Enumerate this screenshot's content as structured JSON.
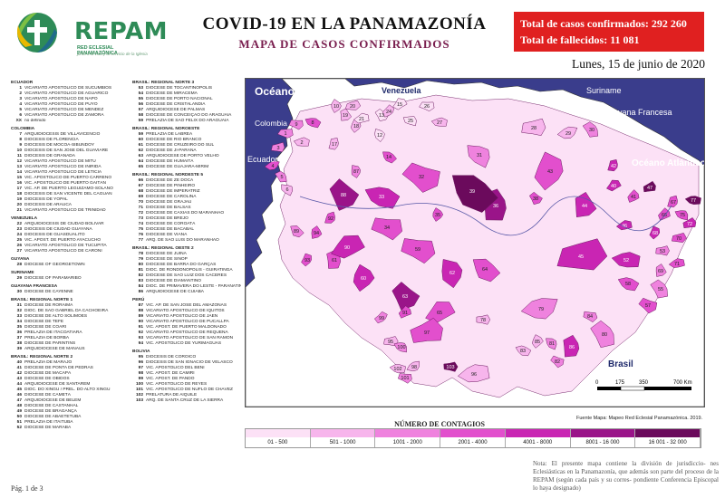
{
  "logo": {
    "name": "REPAM",
    "sub": "RED ECLESIAL PANAMAZÓNICA",
    "tagline": "junto a la vida y al servicio de la Iglesia"
  },
  "header": {
    "title": "COVID-19 EN LA PANAMAZONÍA",
    "subtitle": "MAPA DE CASOS CONFIRMADOS"
  },
  "stats": {
    "cases": "Total de casos confirmados: 292 260",
    "deaths": "Total de fallecidos: 11 081"
  },
  "date": "Lunes, 15 de junio de 2020",
  "legend_col1": [
    {
      "type": "hdr",
      "text": "ECUADOR"
    },
    {
      "n": "1",
      "t": "VICARIATO APOSTÓLICO DE SUCUMBÍOS"
    },
    {
      "n": "2",
      "t": "VICARIATO APOSTÓLICO DE AGUARICO"
    },
    {
      "n": "3",
      "t": "VICARIATO APOSTÓLICO DE NAPO"
    },
    {
      "n": "4",
      "t": "VICARIATO APOSTÓLICO DE PUYO"
    },
    {
      "n": "5",
      "t": "VICARIATO APOSTÓLICO DE MÉNDEZ"
    },
    {
      "n": "6",
      "t": "VICARIATO APOSTÓLICO DE ZAMORA"
    },
    {
      "n": "XX",
      "t": "no definido"
    },
    {
      "type": "hdr",
      "text": "COLOMBIA"
    },
    {
      "n": "7",
      "t": "ARQUIDIÓCESIS DE VILLAVICENCIO"
    },
    {
      "n": "8",
      "t": "DIÓCESIS DE FLORENCIA"
    },
    {
      "n": "9",
      "t": "DIÓCESIS DE MOCOA-SIBUNDOY"
    },
    {
      "n": "10",
      "t": "DIÓCESIS DE SAN JOSÉ DEL GUAVIARE"
    },
    {
      "n": "11",
      "t": "DIÓCESIS DE GRANADA"
    },
    {
      "n": "12",
      "t": "VICARIATO APOSTÓLICO DE MITÚ"
    },
    {
      "n": "13",
      "t": "VICARIATO APOSTÓLICO DE INÍRIDA"
    },
    {
      "n": "14",
      "t": "VICARIATO APOSTÓLICO DE LETICIA"
    },
    {
      "n": "15",
      "t": "VIC. APOSTÓLICO DE PUERTO CARREÑO"
    },
    {
      "n": "16",
      "t": "VIC. APOSTÓLICO DE PUERTO GAITÁN"
    },
    {
      "n": "17",
      "t": "VIC. AP. DE PUERTO LEGUÍZAMO-SOLANO"
    },
    {
      "n": "18",
      "t": "DIÓCESIS DE SAN VICENTE DEL CAGUÁN"
    },
    {
      "n": "19",
      "t": "DIÓCESIS DE YOPAL"
    },
    {
      "n": "20",
      "t": "DIÓCESIS DE ARAUCA"
    },
    {
      "n": "21",
      "t": "VICARIATO APOSTÓLICO DE TRINIDAD"
    },
    {
      "type": "hdr",
      "text": "VENEZUELA"
    },
    {
      "n": "22",
      "t": "ARQUIDIÓCESIS DE CIUDAD BOLÍVAR"
    },
    {
      "n": "23",
      "t": "DIÓCESIS DE CIUDAD GUAYANA"
    },
    {
      "n": "24",
      "t": "DIÓCESIS DE GUASDUALITO"
    },
    {
      "n": "25",
      "t": "VIC. APOST. DE PUERTO AYACUCHO"
    },
    {
      "n": "26",
      "t": "VICARIATO APOSTÓLICO DE TUCUPITA"
    },
    {
      "n": "27",
      "t": "VICARIATO APOSTÓLICO DE CARONÍ"
    },
    {
      "type": "hdr",
      "text": "GUYANA"
    },
    {
      "n": "28",
      "t": "DIOCESE OF GEORGETOWN"
    },
    {
      "type": "hdr",
      "text": "SURINAME"
    },
    {
      "n": "29",
      "t": "DIOCESE OF PARAMARIBO"
    },
    {
      "type": "hdr",
      "text": "GUAYANA FRANCESA"
    },
    {
      "n": "30",
      "t": "DIOCESE DE CAYENNE"
    },
    {
      "type": "hdr",
      "text": "BRASIL: REGIONAL NORTE 1"
    },
    {
      "n": "31",
      "t": "DIOCESE DE RORAIMA"
    },
    {
      "n": "32",
      "t": "DIOC. DE SÃO GABRIEL DA CACHOEIRA"
    },
    {
      "n": "33",
      "t": "DIOCESE DE ALTO SOLIMÕES"
    },
    {
      "n": "34",
      "t": "DIOCESE DE TEFÉ"
    },
    {
      "n": "35",
      "t": "DIOCESE DE COARI"
    },
    {
      "n": "36",
      "t": "PRELAZIA DE ITACOATIARA"
    },
    {
      "n": "37",
      "t": "PRELAZIA DE BORBA"
    },
    {
      "n": "38",
      "t": "DIOCESE DE PARINTINS"
    },
    {
      "n": "39",
      "t": "ARQUIDIOCESE DE MANAUS"
    },
    {
      "type": "hdr",
      "text": "BRASIL: REGIONAL NORTE 2"
    },
    {
      "n": "40",
      "t": "PRELAZIA DE MARAJÓ"
    },
    {
      "n": "41",
      "t": "DIOCESE DE PONTA DE PEDRAS"
    },
    {
      "n": "42",
      "t": "DIOCESE DE MACAPÁ"
    },
    {
      "n": "43",
      "t": "DIOCESE DE ÓBIDOS"
    },
    {
      "n": "44",
      "t": "ARQUIDIOCESE DE SANTARÉM"
    },
    {
      "n": "45",
      "t": "DIOC. DO XINGU / PREL. DO ALTO XINGU"
    },
    {
      "n": "46",
      "t": "DIOCESE DE CAMETÁ"
    },
    {
      "n": "47",
      "t": "ARQUIDIOCESE DE BELÉM"
    },
    {
      "n": "48",
      "t": "DIOCESE DE CASTANHAL"
    },
    {
      "n": "49",
      "t": "DIOCESE DE BRAGANÇA"
    },
    {
      "n": "50",
      "t": "DIOCESE DE ABAETETUBA"
    },
    {
      "n": "51",
      "t": "PRELAZIA DE ITAITUBA"
    },
    {
      "n": "52",
      "t": "DIOCESE DE MARABÁ"
    }
  ],
  "legend_col2": [
    {
      "type": "hdr",
      "text": "BRASIL: REGIONAL NORTE 3"
    },
    {
      "n": "53",
      "t": "DIOCESE DE TOCANTINÓPOLIS"
    },
    {
      "n": "54",
      "t": "DIOCESE DE MIRACEMA"
    },
    {
      "n": "55",
      "t": "DIOCESE DE PORTO NACIONAL"
    },
    {
      "n": "56",
      "t": "DIOCESE DE CRISTALÂNDIA"
    },
    {
      "n": "57",
      "t": "ARQUIDIOCESE DE PALMAS"
    },
    {
      "n": "58",
      "t": "DIOCESE DE CONCEIÇÃO DO ARAGUAIA"
    },
    {
      "n": "59",
      "t": "PRELAZIA DE SÃO FÉLIX DO ARAGUAIA"
    },
    {
      "type": "hdr",
      "text": "BRASIL: REGIONAL NOROESTE"
    },
    {
      "n": "59",
      "t": "PRELAZIA DE LÁBREA"
    },
    {
      "n": "60",
      "t": "DIOCESE DE RIO BRANCO"
    },
    {
      "n": "61",
      "t": "DIOCESE DE CRUZEIRO DO SUL"
    },
    {
      "n": "62",
      "t": "DIOCESE DE JI-PARANÁ"
    },
    {
      "n": "63",
      "t": "ARQUIDIOCESE DE PORTO VELHO"
    },
    {
      "n": "64",
      "t": "DIOCESE DE HUMAITÁ"
    },
    {
      "n": "65",
      "t": "DIOCESE DE GUAJARÁ-MIRIM"
    },
    {
      "type": "hdr",
      "text": "BRASIL: REGIONAL NORDESTE 5"
    },
    {
      "n": "66",
      "t": "DIOCESE DE ZÉ DOCA"
    },
    {
      "n": "67",
      "t": "DIOCESE DE PINHEIRO"
    },
    {
      "n": "68",
      "t": "DIOCESE DE IMPERATRIZ"
    },
    {
      "n": "69",
      "t": "DIOCESE DE CAROLINA"
    },
    {
      "n": "70",
      "t": "DIOCESE DE GRAJAÚ"
    },
    {
      "n": "71",
      "t": "DIOCESE DE BALSAS"
    },
    {
      "n": "72",
      "t": "DIOCESE DE CAXIAS DO MARANHÃO"
    },
    {
      "n": "73",
      "t": "DIOCESE DE BREJO"
    },
    {
      "n": "74",
      "t": "DIOCESE DE COROATÁ"
    },
    {
      "n": "75",
      "t": "DIOCESE DE BACABAL"
    },
    {
      "n": "76",
      "t": "DIOCESE DE VIANA"
    },
    {
      "n": "77",
      "t": "ARQ. DE SÃO LUÍS DO MARANHÃO"
    },
    {
      "type": "hdr",
      "text": "BRASIL: REGIONAL OESTE 2"
    },
    {
      "n": "78",
      "t": "DIOCESE DE JUÍNA"
    },
    {
      "n": "79",
      "t": "DIOCESE DE SINOP"
    },
    {
      "n": "80",
      "t": "DIOCESE DE BARRA DO GARÇAS"
    },
    {
      "n": "81",
      "t": "DIOC. DE RONDONÓPOLIS - GUIRATINGA"
    },
    {
      "n": "82",
      "t": "DIOCESE DE SÃO LUIZ DOS CÁCERES"
    },
    {
      "n": "83",
      "t": "DIOCESE DE DIAMANTINO"
    },
    {
      "n": "84",
      "t": "DIOC. DE PRIMAVERA DO LESTE - PARANATINGA"
    },
    {
      "n": "86",
      "t": "ARQUIDIOCESE DE CUIABÁ"
    },
    {
      "type": "hdr",
      "text": "PERÚ"
    },
    {
      "n": "87",
      "t": "VIC. AP. DE SAN JOSÉ DEL AMAZONAS"
    },
    {
      "n": "88",
      "t": "VICARIATO APOSTÓLICO DE IQUITOS"
    },
    {
      "n": "89",
      "t": "VICARIATO APOSTÓLICO DE JAÉN"
    },
    {
      "n": "90",
      "t": "VICARIATO APOSTÓLICO DE PUCALLPA"
    },
    {
      "n": "91",
      "t": "VIC. APOST. DE PUERTO MALDONADO"
    },
    {
      "n": "92",
      "t": "VICARIATO APOSTÓLICO DE REQUENA"
    },
    {
      "n": "93",
      "t": "VICARIATO APOSTÓLICO DE SAN RAMÓN"
    },
    {
      "n": "94",
      "t": "VIC. APOSTÓLICO DE YURIMAGUAS"
    },
    {
      "type": "hdr",
      "text": "BOLIVIA"
    },
    {
      "n": "95",
      "t": "DIÓCESIS DE COROICO"
    },
    {
      "n": "96",
      "t": "DIÓCESIS DE SAN IGNACIO DE VELASCO"
    },
    {
      "n": "97",
      "t": "VIC. APOSTÓLICO DEL BENI"
    },
    {
      "n": "98",
      "t": "VIC. APOST. DE CAMIRI"
    },
    {
      "n": "99",
      "t": "VIC. APOST. DE PANDO"
    },
    {
      "n": "100",
      "t": "VIC. APOSTÓLICO DE REYES"
    },
    {
      "n": "101",
      "t": "VIC. APOSTÓLICO DE ÑUFLO DE CHÁVEZ"
    },
    {
      "n": "102",
      "t": "PRELATURA DE AIQUILE"
    },
    {
      "n": "103",
      "t": "ARQ. DE SANTA CRUZ DE LA SIERRA"
    }
  ],
  "map": {
    "countries": {
      "pacific": "Océano Pacífico",
      "colombia": "Colombia",
      "venezuela": "Venezuela",
      "guyana": "Guyana",
      "suriname": "Suriname",
      "guyana_fr": "Guayana Francesa",
      "ecuador": "Ecuador",
      "atlantic": "Océano Atlántico",
      "peru": "Perú",
      "bolivia": "Bolivia",
      "brasil": "Brasil"
    },
    "scale_labels": [
      "0",
      "175",
      "350",
      "700 Km"
    ],
    "regions": [
      {
        "n": "1",
        "level": 2
      },
      {
        "n": "2",
        "level": 1
      },
      {
        "n": "3",
        "level": 2
      },
      {
        "n": "4",
        "level": 3
      },
      {
        "n": "5",
        "level": 2
      },
      {
        "n": "6",
        "level": 1
      },
      {
        "n": "8",
        "level": 3
      },
      {
        "n": "9",
        "level": 2
      },
      {
        "n": "10",
        "level": 1
      },
      {
        "n": "12",
        "level": 0
      },
      {
        "n": "13",
        "level": 0
      },
      {
        "n": "14",
        "level": 3
      },
      {
        "n": "15",
        "level": 0
      },
      {
        "n": "17",
        "level": 1
      },
      {
        "n": "18",
        "level": 1
      },
      {
        "n": "19",
        "level": 1
      },
      {
        "n": "20",
        "level": 1
      },
      {
        "n": "21",
        "level": 0
      },
      {
        "n": "24",
        "level": 1
      },
      {
        "n": "25",
        "level": 0
      },
      {
        "n": "26",
        "level": 0
      },
      {
        "n": "27",
        "level": 1
      },
      {
        "n": "28",
        "level": 1
      },
      {
        "n": "29",
        "level": 1
      },
      {
        "n": "30",
        "level": 2
      },
      {
        "n": "31",
        "level": 2
      },
      {
        "n": "32",
        "level": 3
      },
      {
        "n": "33",
        "level": 4
      },
      {
        "n": "34",
        "level": 3
      },
      {
        "n": "35",
        "level": 3
      },
      {
        "n": "36",
        "level": 5
      },
      {
        "n": "38",
        "level": 3
      },
      {
        "n": "39",
        "level": 6
      },
      {
        "n": "40",
        "level": 4
      },
      {
        "n": "41",
        "level": 3
      },
      {
        "n": "42",
        "level": 4
      },
      {
        "n": "43",
        "level": 3
      },
      {
        "n": "44",
        "level": 4
      },
      {
        "n": "45",
        "level": 4
      },
      {
        "n": "46",
        "level": 4
      },
      {
        "n": "47",
        "level": 6
      },
      {
        "n": "52",
        "level": 4
      },
      {
        "n": "53",
        "level": 2
      },
      {
        "n": "55",
        "level": 2
      },
      {
        "n": "57",
        "level": 3
      },
      {
        "n": "58",
        "level": 3
      },
      {
        "n": "59",
        "level": 3
      },
      {
        "n": "60",
        "level": 4
      },
      {
        "n": "61",
        "level": 3
      },
      {
        "n": "62",
        "level": 4
      },
      {
        "n": "63",
        "level": 5
      },
      {
        "n": "64",
        "level": 3
      },
      {
        "n": "65",
        "level": 3
      },
      {
        "n": "66",
        "level": 3
      },
      {
        "n": "67",
        "level": 3
      },
      {
        "n": "68",
        "level": 4
      },
      {
        "n": "69",
        "level": 2
      },
      {
        "n": "70",
        "level": 3
      },
      {
        "n": "71",
        "level": 3
      },
      {
        "n": "72",
        "level": 4
      },
      {
        "n": "75",
        "level": 3
      },
      {
        "n": "77",
        "level": 6
      },
      {
        "n": "78",
        "level": 1
      },
      {
        "n": "79",
        "level": 2
      },
      {
        "n": "80",
        "level": 2
      },
      {
        "n": "81",
        "level": 2
      },
      {
        "n": "82",
        "level": 2
      },
      {
        "n": "83",
        "level": 1
      },
      {
        "n": "84",
        "level": 2
      },
      {
        "n": "85",
        "level": 1
      },
      {
        "n": "86",
        "level": 4
      },
      {
        "n": "87",
        "level": 2
      },
      {
        "n": "88",
        "level": 5
      },
      {
        "n": "89",
        "level": 2
      },
      {
        "n": "90",
        "level": 4
      },
      {
        "n": "91",
        "level": 3
      },
      {
        "n": "92",
        "level": 3
      },
      {
        "n": "93",
        "level": 3
      },
      {
        "n": "94",
        "level": 3
      },
      {
        "n": "95",
        "level": 1
      },
      {
        "n": "96",
        "level": 1
      },
      {
        "n": "97",
        "level": 3
      },
      {
        "n": "98",
        "level": 1
      },
      {
        "n": "99",
        "level": 2
      },
      {
        "n": "100",
        "level": 2
      },
      {
        "n": "101",
        "level": 2
      },
      {
        "n": "102",
        "level": 1
      },
      {
        "n": "103",
        "level": 6
      }
    ]
  },
  "contagio": {
    "title": "NÚMERO DE CONTAGIOS",
    "bins": [
      {
        "label": "01 - 500",
        "color": "#fce1f6"
      },
      {
        "label": "501 - 1000",
        "color": "#f7b5ec"
      },
      {
        "label": "1001 - 2000",
        "color": "#ef82de"
      },
      {
        "label": "2001 - 4000",
        "color": "#e24fcd"
      },
      {
        "label": "4001 - 8000",
        "color": "#c925b3"
      },
      {
        "label": "8001 - 16 000",
        "color": "#9a1489"
      },
      {
        "label": "16 001 - 32 000",
        "color": "#6b0a5c"
      }
    ]
  },
  "source": "Fuente Mapa: Mapeo Red Eclesial Panamazónica. 2019.",
  "note": "Nota: El presente mapa contiene la división de jurisdiccio- nes Eclesiásticas en la Panamazonía, que además son parte del proceso de la REPAM (según cada país y su corres- pondiente Conferencia Episcopal lo haya designado)",
  "page": "Pág. 1 de 3"
}
